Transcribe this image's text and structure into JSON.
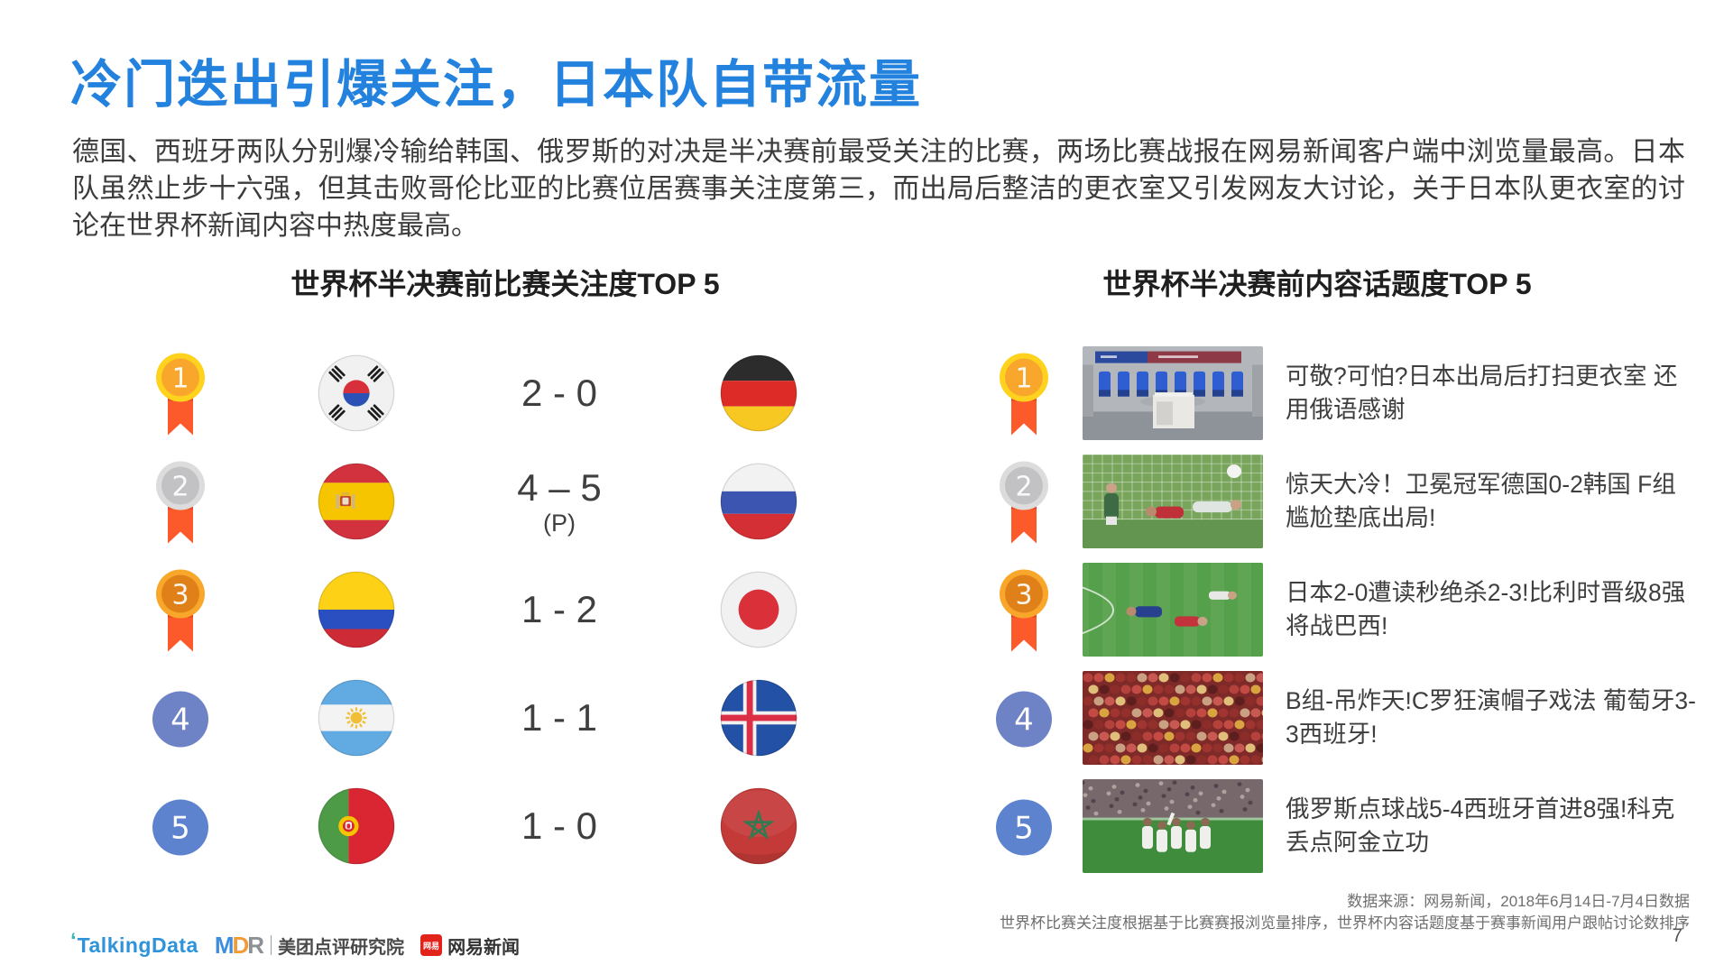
{
  "slide": {
    "title": "冷门迭出引爆关注，日本队自带流量",
    "paragraph": "德国、西班牙两队分别爆冷输给韩国、俄罗斯的对决是半决赛前最受关注的比赛，两场比赛战报在网易新闻客户端中浏览量最高。日本队虽然止步十六强，但其击败哥伦比亚的比赛位居赛事关注度第三，而出局后整洁的更衣室又引发网友大讨论，关于日本队更衣室的讨论在世界杯新闻内容中热度最高。",
    "page_number": "7"
  },
  "left_section": {
    "title": "世界杯半决赛前比赛关注度TOP 5",
    "rows": [
      {
        "rank": "1",
        "medal": "gold",
        "home": "south-korea",
        "score": "2 - 0",
        "note": "",
        "away": "germany"
      },
      {
        "rank": "2",
        "medal": "silver",
        "home": "spain",
        "score": "4 – 5",
        "note": "(P)",
        "away": "russia"
      },
      {
        "rank": "3",
        "medal": "bronze",
        "home": "colombia",
        "score": "1 - 2",
        "note": "",
        "away": "japan"
      },
      {
        "rank": "4",
        "medal": "blue-4",
        "home": "argentina",
        "score": "1 - 1",
        "note": "",
        "away": "iceland"
      },
      {
        "rank": "5",
        "medal": "blue-5",
        "home": "portugal",
        "score": "1 - 0",
        "note": "",
        "away": "morocco"
      }
    ]
  },
  "right_section": {
    "title": "世界杯半决赛前内容话题度TOP 5",
    "rows": [
      {
        "rank": "1",
        "medal": "gold",
        "image": "japan-locker-room",
        "headline": "可敬?可怕?日本出局后打扫更衣室 还用俄语感谢"
      },
      {
        "rank": "2",
        "medal": "silver",
        "image": "germany-korea-goal",
        "headline": "惊天大冷！卫冕冠军德国0-2韩国 F组尴尬垫底出局!"
      },
      {
        "rank": "3",
        "medal": "bronze",
        "image": "japan-belgium-match",
        "headline": "日本2-0遭读秒绝杀2-3!比利时晋级8强将战巴西!"
      },
      {
        "rank": "4",
        "medal": "blue-4",
        "image": "portugal-spain-fans",
        "headline": "B组-吊炸天!C罗狂演帽子戏法 葡萄牙3-3西班牙!"
      },
      {
        "rank": "5",
        "medal": "blue-5",
        "image": "russia-celebration",
        "headline": "俄罗斯点球战5-4西班牙首进8强!科克丢点阿金立功"
      }
    ]
  },
  "footer": {
    "source_line1": "数据来源：网易新闻，2018年6月14日-7月4日数据",
    "source_line2": "世界杯比赛关注度根据基于比赛赛报浏览量排序，世界杯内容话题度基于赛事新闻用户跟帖讨论数排序",
    "logos": {
      "talkingdata_mark": "‘",
      "talkingdata": "TalkingData",
      "mdr_m": "M",
      "mdr_d": "D",
      "mdr_r": "R",
      "meituan": "美团点评研究院",
      "netease_icon": "网易",
      "netease": "网易新闻"
    }
  },
  "colors": {
    "title_blue": "#2482df",
    "medal_gold_outer": "#ffd21e",
    "medal_gold_inner": "#f8a72c",
    "medal_silver_outer": "#dcdcdc",
    "medal_silver_inner": "#c2c2c5",
    "medal_bronze_outer": "#f8a72b",
    "medal_bronze_inner": "#e08019",
    "ribbon_orange": "#fd5a2c",
    "rank4_blue": "#6e82c6",
    "rank5_blue": "#5d83cf"
  }
}
